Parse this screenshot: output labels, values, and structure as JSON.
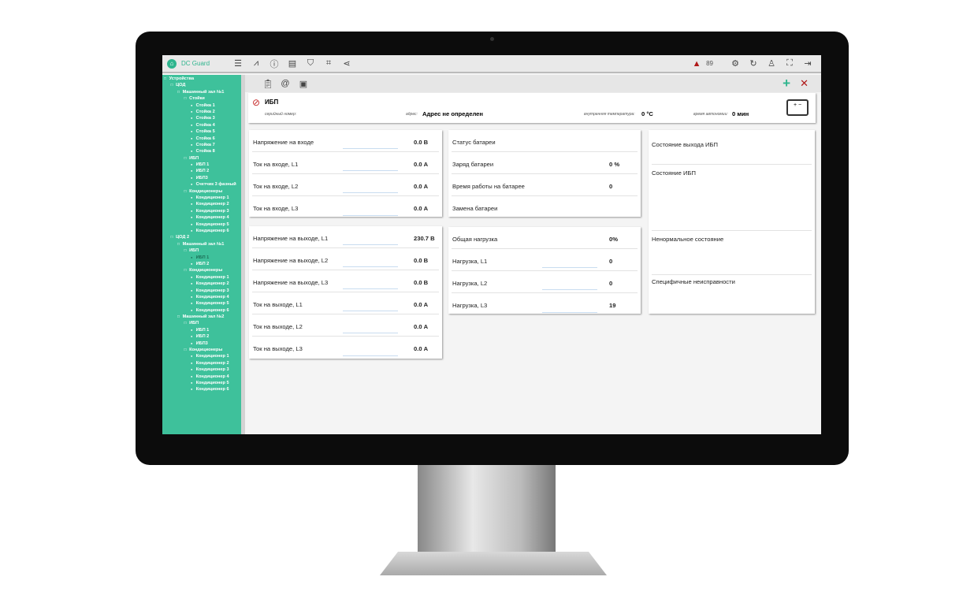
{
  "app": {
    "title": "DC Guard",
    "alarm_count": "89"
  },
  "header_icons": [
    "racks-icon",
    "chart-icon",
    "alert-icon",
    "report-icon",
    "shield-icon",
    "scan-icon",
    "share-icon"
  ],
  "header_right_icons": [
    "device-settings-icon",
    "refresh-icon",
    "user-icon",
    "fullscreen-icon",
    "logout-icon"
  ],
  "toolbar": {
    "icons": [
      "clipboard-icon",
      "at-icon",
      "monitor-icon"
    ],
    "add": "+",
    "close": "✕"
  },
  "tree": [
    {
      "l": 0,
      "t": "Устройства"
    },
    {
      "l": 1,
      "t": "ЦОД"
    },
    {
      "l": 2,
      "t": "Машинный зал №1"
    },
    {
      "l": 3,
      "t": "Стойки"
    },
    {
      "l": 4,
      "t": "Стойка 1"
    },
    {
      "l": 4,
      "t": "Стойка 2"
    },
    {
      "l": 4,
      "t": "Стойка 3"
    },
    {
      "l": 4,
      "t": "Стойка 4"
    },
    {
      "l": 4,
      "t": "Стойка 5"
    },
    {
      "l": 4,
      "t": "Стойка 6"
    },
    {
      "l": 4,
      "t": "Стойка 7"
    },
    {
      "l": 4,
      "t": "Стойка 8"
    },
    {
      "l": 3,
      "t": "ИБП"
    },
    {
      "l": 4,
      "t": "ИБП 1"
    },
    {
      "l": 4,
      "t": "ИБП 2"
    },
    {
      "l": 4,
      "t": "ИБП3"
    },
    {
      "l": 4,
      "t": "Счетчик 3 фазный"
    },
    {
      "l": 3,
      "t": "Кондиционеры"
    },
    {
      "l": 4,
      "t": "Кондиционер 1"
    },
    {
      "l": 4,
      "t": "Кондиционер 2"
    },
    {
      "l": 4,
      "t": "Кондиционер 3"
    },
    {
      "l": 4,
      "t": "Кондиционер 4"
    },
    {
      "l": 4,
      "t": "Кондиционер 5"
    },
    {
      "l": 4,
      "t": "Кондиционер 6"
    },
    {
      "l": 1,
      "t": "ЦОД 2"
    },
    {
      "l": 2,
      "t": "Машинный зал №1"
    },
    {
      "l": 3,
      "t": "ИБП"
    },
    {
      "l": 4,
      "t": "ИБП 1",
      "selected": true
    },
    {
      "l": 4,
      "t": "ИБП 2"
    },
    {
      "l": 3,
      "t": "Кондиционеры"
    },
    {
      "l": 4,
      "t": "Кондиционер 1"
    },
    {
      "l": 4,
      "t": "Кондиционер 2"
    },
    {
      "l": 4,
      "t": "Кондиционер 3"
    },
    {
      "l": 4,
      "t": "Кондиционер 4"
    },
    {
      "l": 4,
      "t": "Кондиционер 5"
    },
    {
      "l": 4,
      "t": "Кондиционер 6"
    },
    {
      "l": 2,
      "t": "Машинный зал №2"
    },
    {
      "l": 3,
      "t": "ИБП"
    },
    {
      "l": 4,
      "t": "ИБП 1"
    },
    {
      "l": 4,
      "t": "ИБП 2"
    },
    {
      "l": 4,
      "t": "ИБП3"
    },
    {
      "l": 3,
      "t": "Кондиционеры"
    },
    {
      "l": 4,
      "t": "Кондиционер 1"
    },
    {
      "l": 4,
      "t": "Кондиционер 2"
    },
    {
      "l": 4,
      "t": "Кондиционер 3"
    },
    {
      "l": 4,
      "t": "Кондиционер 4"
    },
    {
      "l": 4,
      "t": "Кондиционер 5"
    },
    {
      "l": 4,
      "t": "Кондиционер 6"
    }
  ],
  "device": {
    "name": "ИБП",
    "serial_label": "серийный номер:",
    "address_label": "адрес:",
    "address": "Адрес не определен",
    "temp_label": "внутренняя температура:",
    "temp": "0 °C",
    "autonomy_label": "время автономии:",
    "autonomy": "0 мин"
  },
  "input_panel": [
    {
      "label": "Напряжение на входе",
      "value": "0.0 В"
    },
    {
      "label": "Ток на входе, L1",
      "value": "0.0 А"
    },
    {
      "label": "Ток на входе, L2",
      "value": "0.0 А"
    },
    {
      "label": "Ток на входе, L3",
      "value": "0.0 А"
    }
  ],
  "battery_panel": [
    {
      "label": "Статус батареи",
      "value": ""
    },
    {
      "label": "Заряд батареи",
      "value": "0 %"
    },
    {
      "label": "Время работы на батарее",
      "value": "0"
    },
    {
      "label": "Замена батареи",
      "value": ""
    }
  ],
  "output_panel": [
    {
      "label": "Напряжение на выходе, L1",
      "value": "230.7 В"
    },
    {
      "label": "Напряжение на выходе, L2",
      "value": "0.0 В"
    },
    {
      "label": "Напряжение на выходе, L3",
      "value": "0.0 В"
    },
    {
      "label": "Ток на выходе, L1",
      "value": "0.0 А"
    },
    {
      "label": "Ток на выходе, L2",
      "value": "0.0 А"
    },
    {
      "label": "Ток на выходе, L3",
      "value": "0.0 А"
    }
  ],
  "load_panel": [
    {
      "label": "Общая нагрузка",
      "value": "0%"
    },
    {
      "label": "Нагрузка, L1",
      "value": "0"
    },
    {
      "label": "Нагрузка, L2",
      "value": "0"
    },
    {
      "label": "Нагрузка, L3",
      "value": "19"
    }
  ],
  "status_panel": [
    "Состояние выхода ИБП",
    "Состояние ИБП",
    "Ненормальное состояние",
    "Специфичные неисправности"
  ],
  "colors": {
    "accent": "#3ec19b",
    "alarm": "#b01818",
    "close": "#b01818"
  }
}
